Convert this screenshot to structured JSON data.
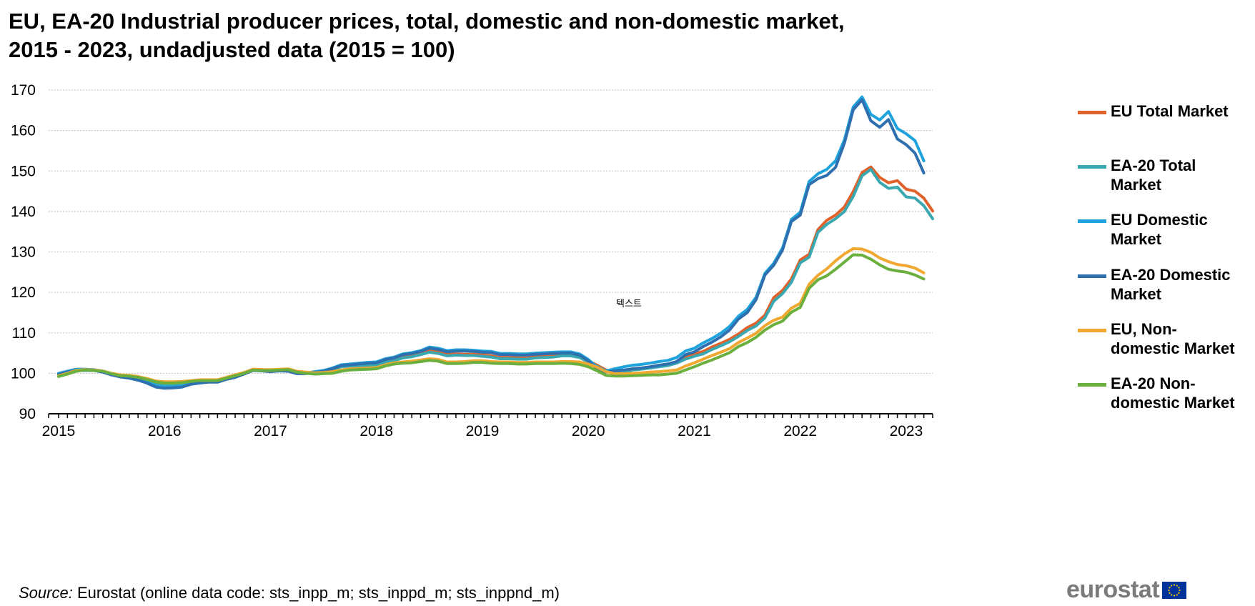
{
  "title_lines": [
    "EU, EA-20 Industrial producer prices, total, domestic and non-domestic market,",
    "2015 - 2023, undadjusted data (2015 = 100)"
  ],
  "note": "텍스트",
  "source": {
    "label": "Source:",
    "text": " Eurostat (online data code: sts_inpp_m; sts_inppd_m; sts_inppnd_m)"
  },
  "logo": {
    "text": "eurostat",
    "flag_color": "#003399",
    "star_color": "#FFCC00"
  },
  "colors": {
    "grid": "#bfbfbf",
    "axis": "#000000"
  },
  "chart_data": {
    "type": "line",
    "x_start": "2015-01",
    "x_end": "2023-04",
    "frequency": "monthly",
    "xlabel": "",
    "ylabel": "",
    "ylim": [
      90,
      170
    ],
    "yticks": [
      90,
      100,
      110,
      120,
      130,
      140,
      150,
      160,
      170
    ],
    "xtick_labels": [
      "2015",
      "2016",
      "2017",
      "2018",
      "2019",
      "2020",
      "2021",
      "2022",
      "2023"
    ],
    "grid": "horizontal dotted",
    "legend_position": "right",
    "series": [
      {
        "name": "EU Total Market",
        "color": "#E0622A",
        "values": [
          100,
          100.5,
          101,
          101,
          100.9,
          100.5,
          99.8,
          99.3,
          99.1,
          98.7,
          98.1,
          97.3,
          97,
          97,
          97.3,
          97.8,
          98.1,
          98.2,
          98.2,
          98.9,
          99.4,
          100.1,
          101,
          100.9,
          100.8,
          100.9,
          100.8,
          100.2,
          100.1,
          100.3,
          100.5,
          101,
          101.7,
          101.9,
          101.9,
          102.1,
          102.2,
          103,
          103.3,
          104,
          104.3,
          104.8,
          105.5,
          105.2,
          104.6,
          104.8,
          104.7,
          104.7,
          104.5,
          104.3,
          103.9,
          103.9,
          103.8,
          103.8,
          104.1,
          104.2,
          104.3,
          104.6,
          104.6,
          104.2,
          103.1,
          102,
          100.8,
          100.3,
          100.5,
          101.1,
          101.3,
          101.6,
          102,
          102.3,
          102.9,
          104,
          104.8,
          105.4,
          106.5,
          107.4,
          108.4,
          109.7,
          111.3,
          112.4,
          114.4,
          118.7,
          120.5,
          123.3,
          128,
          129.4,
          135.5,
          137.8,
          139.1,
          141.1,
          144.9,
          149.6,
          151,
          148.4,
          147.1,
          147.6,
          145.5,
          145,
          143.3,
          140.1
        ]
      },
      {
        "name": "EA-20 Total Market",
        "color": "#3AA8B0",
        "values": [
          99.6,
          100.2,
          100.8,
          100.8,
          100.7,
          100.3,
          99.6,
          99.2,
          99,
          98.6,
          98,
          97.2,
          96.9,
          96.9,
          97.2,
          97.7,
          98,
          98.1,
          98.1,
          98.8,
          99.3,
          100,
          100.9,
          100.8,
          100.7,
          100.8,
          100.7,
          100.1,
          100,
          100.2,
          100.4,
          100.9,
          101.6,
          101.8,
          101.8,
          102,
          102.1,
          102.8,
          103.1,
          103.8,
          104.1,
          104.6,
          105.2,
          104.9,
          104.3,
          104.5,
          104.4,
          104.4,
          104.2,
          104,
          103.6,
          103.6,
          103.5,
          103.5,
          103.8,
          103.9,
          104,
          104.3,
          104.3,
          103.9,
          102.8,
          101.7,
          100.5,
          100,
          100.2,
          100.8,
          101,
          101.3,
          101.6,
          101.9,
          102.5,
          103.5,
          104.2,
          104.8,
          105.9,
          106.8,
          107.8,
          109.1,
          110.6,
          111.7,
          113.7,
          117.8,
          119.7,
          122.5,
          127.3,
          128.7,
          134.8,
          136.8,
          138.2,
          140,
          143.7,
          148.8,
          150.4,
          147.2,
          145.7,
          146,
          143.6,
          143.3,
          141.4,
          138.2
        ]
      },
      {
        "name": "EU Domestic Market",
        "color": "#1EA3DC",
        "values": [
          100,
          100.5,
          101,
          101,
          100.9,
          100.5,
          99.8,
          99.3,
          99,
          98.5,
          97.8,
          96.9,
          96.6,
          96.7,
          96.9,
          97.5,
          97.8,
          98,
          98,
          98.7,
          99.2,
          100,
          100.9,
          100.8,
          100.6,
          100.8,
          100.7,
          100.1,
          100.1,
          100.4,
          100.7,
          101.3,
          102.1,
          102.3,
          102.5,
          102.7,
          102.8,
          103.6,
          104,
          104.8,
          105.1,
          105.6,
          106.5,
          106.2,
          105.6,
          105.8,
          105.8,
          105.7,
          105.5,
          105.4,
          104.9,
          104.9,
          104.8,
          104.8,
          105,
          105.1,
          105.2,
          105.3,
          105.3,
          104.8,
          103.4,
          101.5,
          100.6,
          101.1,
          101.6,
          102,
          102.2,
          102.5,
          102.9,
          103.2,
          103.9,
          105.5,
          106.2,
          107.5,
          108.6,
          109.9,
          111.6,
          114.1,
          115.8,
          118.8,
          124.7,
          127.2,
          131,
          138,
          139.8,
          147.4,
          149.3,
          150.4,
          152.5,
          157.7,
          165.8,
          168.3,
          164,
          162.6,
          164.7,
          160.5,
          159.2,
          157.5,
          152.5
        ]
      },
      {
        "name": "EA-20 Domestic Market",
        "color": "#2E6FAF",
        "values": [
          99.7,
          100.3,
          100.7,
          100.7,
          100.7,
          100.3,
          99.6,
          99.1,
          98.8,
          98.3,
          97.6,
          96.6,
          96.3,
          96.4,
          96.6,
          97.3,
          97.6,
          97.8,
          97.8,
          98.5,
          99,
          99.8,
          100.7,
          100.6,
          100.4,
          100.6,
          100.5,
          99.9,
          99.9,
          100.2,
          100.5,
          101.1,
          101.9,
          102.1,
          102.3,
          102.5,
          102.6,
          103.4,
          103.8,
          104.6,
          104.9,
          105.4,
          106.2,
          105.9,
          105.3,
          105.5,
          105.5,
          105.4,
          105.2,
          105.1,
          104.6,
          104.6,
          104.5,
          104.5,
          104.7,
          104.8,
          104.9,
          105,
          105,
          104.5,
          103.1,
          101,
          100.3,
          100.6,
          100.8,
          101.1,
          101.3,
          101.6,
          102,
          102.3,
          102.9,
          104.6,
          105.3,
          106.6,
          107.7,
          109,
          110.7,
          113.4,
          115,
          118.2,
          124.3,
          126.7,
          130.5,
          137.5,
          139.1,
          146.6,
          148.1,
          148.9,
          150.9,
          156.9,
          165.1,
          167.6,
          162.4,
          160.8,
          162.7,
          157.9,
          156.5,
          154.4,
          149.5
        ]
      },
      {
        "name": "EU, Non-domestic Market",
        "color": "#F0A830",
        "values": [
          99.4,
          100,
          100.7,
          100.9,
          100.8,
          100.6,
          100,
          99.6,
          99.5,
          99.2,
          98.7,
          98.1,
          97.9,
          97.9,
          98,
          98.2,
          98.4,
          98.4,
          98.4,
          99,
          99.6,
          100.2,
          101,
          100.9,
          100.9,
          101,
          101.1,
          100.5,
          100.3,
          100.1,
          100.2,
          100.4,
          100.8,
          101.1,
          101.2,
          101.3,
          101.4,
          102.1,
          102.6,
          102.8,
          103,
          103.3,
          103.6,
          103.4,
          102.8,
          102.8,
          102.9,
          103.1,
          103.1,
          102.9,
          102.8,
          102.8,
          102.7,
          102.7,
          102.8,
          102.8,
          102.8,
          102.9,
          102.9,
          102.8,
          102.3,
          101.5,
          100.4,
          99.9,
          99.9,
          100,
          100.1,
          100.3,
          100.4,
          100.6,
          100.8,
          101.8,
          102.6,
          103.5,
          104.4,
          105.2,
          106.1,
          107.6,
          108.7,
          109.9,
          111.8,
          113.1,
          113.9,
          116.1,
          117.3,
          122,
          124.2,
          125.8,
          127.8,
          129.5,
          130.8,
          130.7,
          129.9,
          128.5,
          127.6,
          126.9,
          126.6,
          126,
          124.8
        ]
      },
      {
        "name": "EA-20 Non-domestic Market",
        "color": "#6BB03E",
        "values": [
          99.2,
          99.8,
          100.5,
          100.8,
          100.7,
          100.5,
          99.9,
          99.4,
          99.3,
          99,
          98.5,
          97.9,
          97.6,
          97.6,
          97.7,
          98,
          98.2,
          98.2,
          98.2,
          98.8,
          99.4,
          100,
          100.8,
          100.7,
          100.7,
          100.8,
          100.9,
          100.3,
          100,
          99.8,
          99.9,
          100,
          100.5,
          100.8,
          100.9,
          101,
          101.1,
          101.8,
          102.3,
          102.5,
          102.6,
          102.9,
          103.2,
          103,
          102.4,
          102.4,
          102.5,
          102.7,
          102.7,
          102.5,
          102.4,
          102.4,
          102.3,
          102.3,
          102.4,
          102.4,
          102.4,
          102.5,
          102.4,
          102.2,
          101.6,
          100.6,
          99.5,
          99.3,
          99.3,
          99.4,
          99.5,
          99.6,
          99.6,
          99.8,
          100,
          100.8,
          101.6,
          102.5,
          103.3,
          104.2,
          105.1,
          106.6,
          107.6,
          108.9,
          110.7,
          112,
          112.9,
          115.1,
          116.3,
          121,
          123.1,
          124.1,
          125.7,
          127.5,
          129.3,
          129.2,
          128.2,
          126.8,
          125.7,
          125.3,
          125,
          124.3,
          123.3
        ]
      }
    ]
  }
}
